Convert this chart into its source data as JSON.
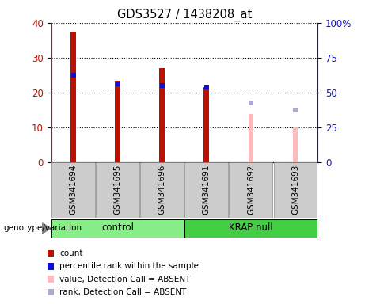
{
  "title": "GDS3527 / 1438208_at",
  "samples": [
    "GSM341694",
    "GSM341695",
    "GSM341696",
    "GSM341691",
    "GSM341692",
    "GSM341693"
  ],
  "count_values": [
    37.5,
    23.5,
    27.0,
    21.5,
    null,
    null
  ],
  "rank_values": [
    25.0,
    22.5,
    22.0,
    21.5,
    null,
    null
  ],
  "absent_count_values": [
    null,
    null,
    null,
    null,
    14.0,
    10.0
  ],
  "absent_rank_values": [
    null,
    null,
    null,
    null,
    17.0,
    15.0
  ],
  "ylim_left": [
    0,
    40
  ],
  "ylim_right": [
    0,
    100
  ],
  "left_ticks": [
    0,
    10,
    20,
    30,
    40
  ],
  "right_ticks": [
    0,
    25,
    50,
    75,
    100
  ],
  "right_tick_labels": [
    "0",
    "25",
    "50",
    "75",
    "100%"
  ],
  "count_color": "#bb1100",
  "rank_color": "#1111cc",
  "absent_count_color": "#ffbbbb",
  "absent_rank_color": "#aaaacc",
  "bar_width": 0.12,
  "legend_labels": [
    "count",
    "percentile rank within the sample",
    "value, Detection Call = ABSENT",
    "rank, Detection Call = ABSENT"
  ],
  "legend_colors": [
    "#bb1100",
    "#1111cc",
    "#ffbbbb",
    "#aaaacc"
  ],
  "genotype_label": "genotype/variation",
  "ylabel_left_color": "#bb1100",
  "ylabel_right_color": "#1111cc",
  "group_spans": [
    [
      0,
      2,
      "control",
      "#88ee88"
    ],
    [
      3,
      5,
      "KRAP null",
      "#44cc44"
    ]
  ],
  "label_box_color": "#cccccc",
  "label_box_edge": "#888888",
  "group_box_edge": "#000000"
}
